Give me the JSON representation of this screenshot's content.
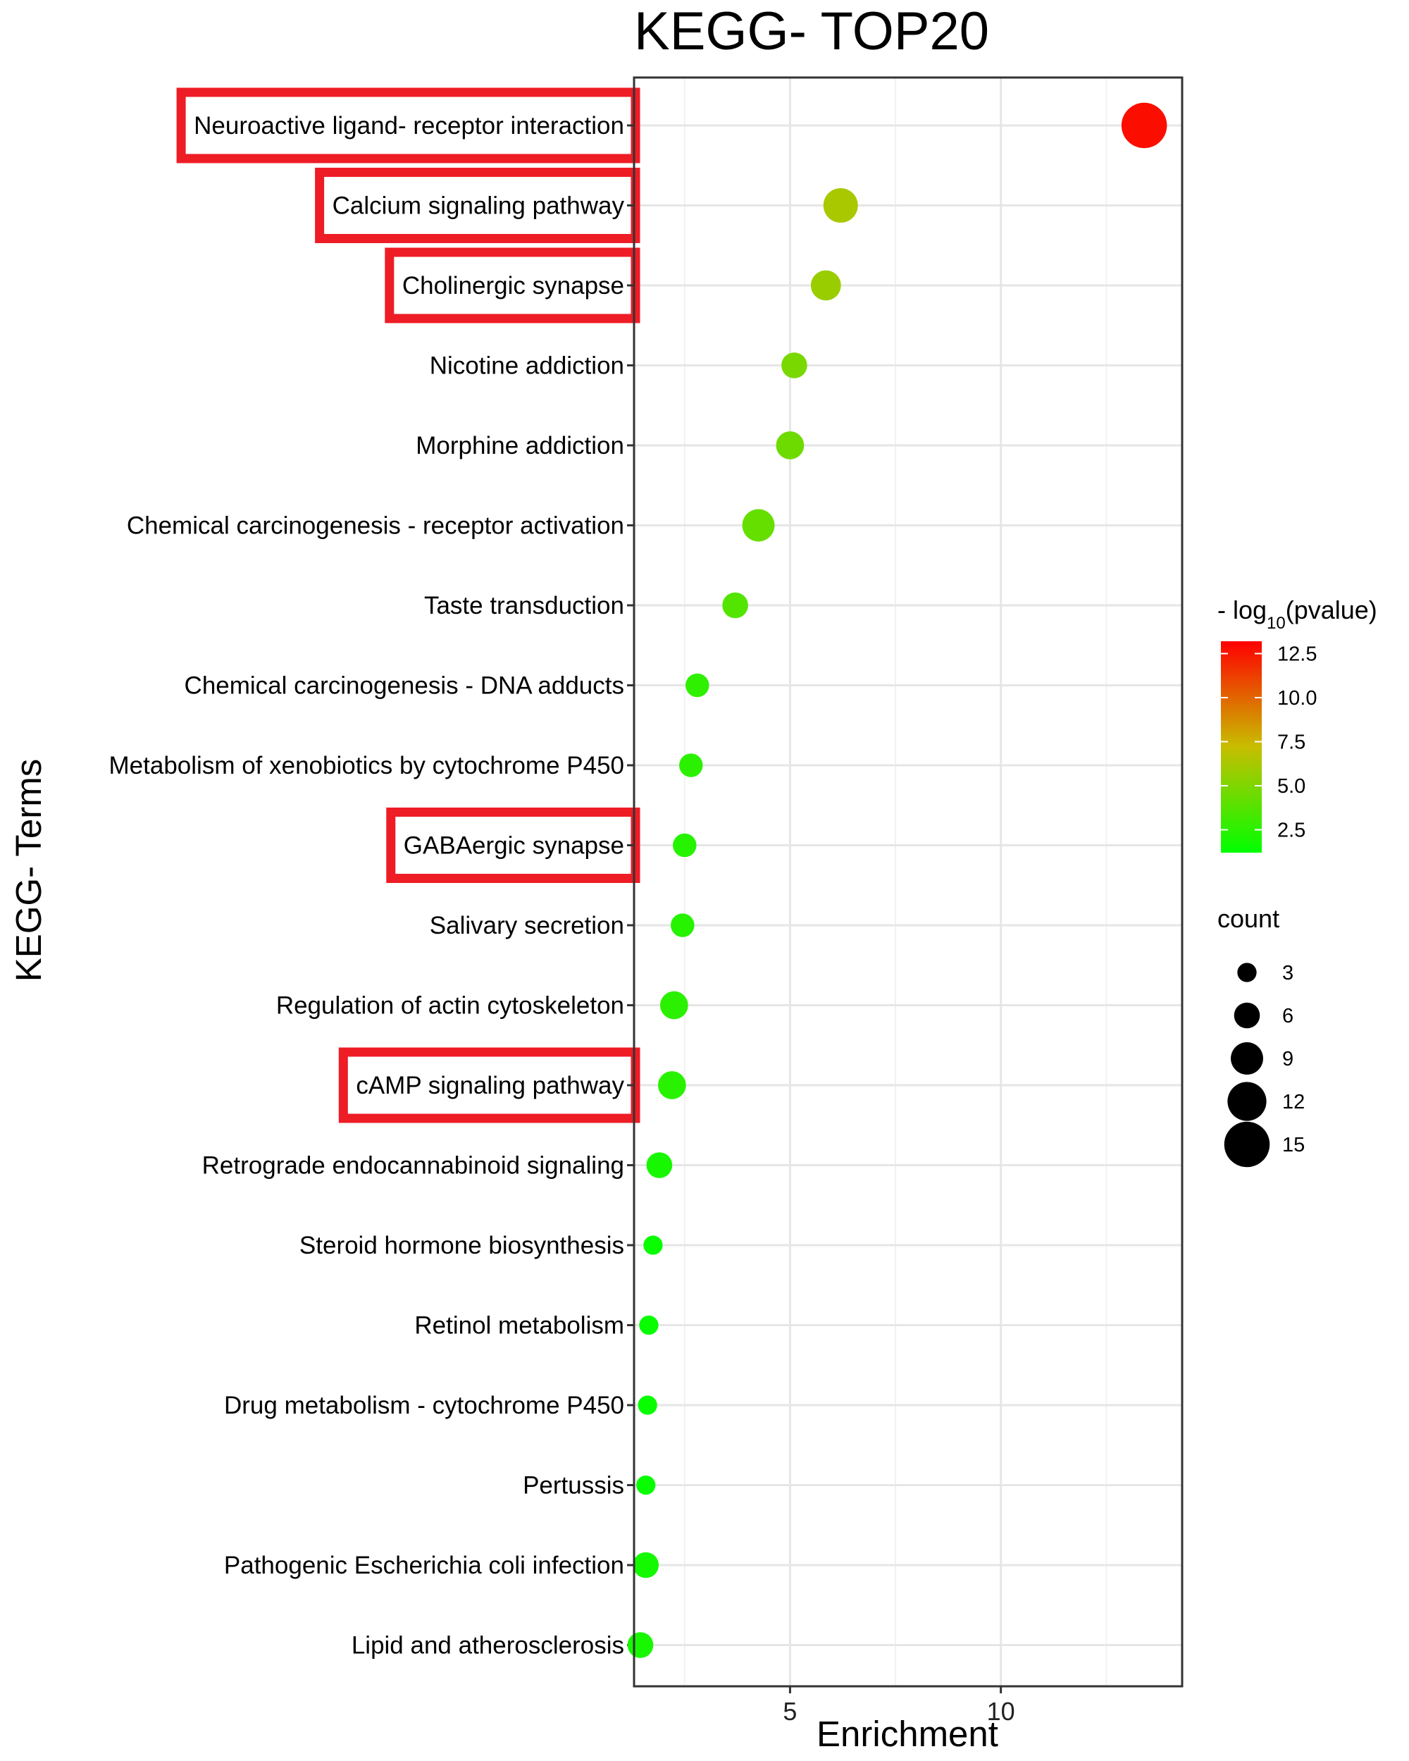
{
  "chart_data": {
    "type": "scatter",
    "title": "KEGG- TOP20",
    "xlabel": "Enrichment",
    "ylabel": "KEGG- Terms",
    "xlim": [
      1.3,
      14.3
    ],
    "x_ticks": [
      5,
      10
    ],
    "grid": true,
    "terms": [
      {
        "name": "Neuroactive ligand- receptor interaction",
        "enrichment": 13.4,
        "count": 15,
        "neg_log10_pvalue": 12.8,
        "highlighted": true
      },
      {
        "name": "Calcium signaling pathway",
        "enrichment": 6.2,
        "count": 10,
        "neg_log10_pvalue": 6.3,
        "highlighted": true
      },
      {
        "name": "Cholinergic synapse",
        "enrichment": 5.85,
        "count": 8,
        "neg_log10_pvalue": 5.8,
        "highlighted": true
      },
      {
        "name": "Nicotine addiction",
        "enrichment": 5.1,
        "count": 6,
        "neg_log10_pvalue": 4.8,
        "highlighted": false
      },
      {
        "name": "Morphine addiction",
        "enrichment": 5.0,
        "count": 7,
        "neg_log10_pvalue": 4.5,
        "highlighted": false
      },
      {
        "name": "Chemical carcinogenesis -  receptor activation",
        "enrichment": 4.25,
        "count": 9,
        "neg_log10_pvalue": 4.2,
        "highlighted": false
      },
      {
        "name": "Taste transduction",
        "enrichment": 3.7,
        "count": 6,
        "neg_log10_pvalue": 3.7,
        "highlighted": false
      },
      {
        "name": "Chemical carcinogenesis -  DNA adducts",
        "enrichment": 2.8,
        "count": 5,
        "neg_log10_pvalue": 2.6,
        "highlighted": false
      },
      {
        "name": "Metabolism of xenobiotics by cytochrome P450",
        "enrichment": 2.65,
        "count": 5,
        "neg_log10_pvalue": 2.5,
        "highlighted": false
      },
      {
        "name": "GABAergic synapse",
        "enrichment": 2.5,
        "count": 5,
        "neg_log10_pvalue": 2.3,
        "highlighted": true
      },
      {
        "name": "Salivary secretion",
        "enrichment": 2.45,
        "count": 5,
        "neg_log10_pvalue": 2.3,
        "highlighted": false
      },
      {
        "name": "Regulation of actin cytoskeleton",
        "enrichment": 2.25,
        "count": 7,
        "neg_log10_pvalue": 2.5,
        "highlighted": false
      },
      {
        "name": "cAMP signaling pathway",
        "enrichment": 2.2,
        "count": 7,
        "neg_log10_pvalue": 2.4,
        "highlighted": true
      },
      {
        "name": "Retrograde endocannabinoid signaling",
        "enrichment": 1.9,
        "count": 6,
        "neg_log10_pvalue": 1.9,
        "highlighted": false
      },
      {
        "name": "Steroid hormone biosynthesis",
        "enrichment": 1.75,
        "count": 3,
        "neg_log10_pvalue": 1.5,
        "highlighted": false
      },
      {
        "name": "Retinol metabolism",
        "enrichment": 1.65,
        "count": 3,
        "neg_log10_pvalue": 1.4,
        "highlighted": false
      },
      {
        "name": "Drug metabolism -  cytochrome P450",
        "enrichment": 1.62,
        "count": 3,
        "neg_log10_pvalue": 1.4,
        "highlighted": false
      },
      {
        "name": "Pertussis",
        "enrichment": 1.58,
        "count": 3,
        "neg_log10_pvalue": 1.4,
        "highlighted": false
      },
      {
        "name": "Pathogenic Escherichia coli infection",
        "enrichment": 1.58,
        "count": 6,
        "neg_log10_pvalue": 1.8,
        "highlighted": false
      },
      {
        "name": "Lipid and atherosclerosis",
        "enrichment": 1.45,
        "count": 6,
        "neg_log10_pvalue": 1.9,
        "highlighted": false
      }
    ],
    "color_legend": {
      "title_prefix": "- log",
      "title_subscript": "10",
      "title_suffix": "(pvalue)",
      "min": 1.2,
      "max": 13.2,
      "low_color": "#00ff00",
      "high_color": "#ff0000",
      "ticks": [
        2.5,
        5.0,
        7.5,
        10.0,
        12.5
      ],
      "tick_labels": [
        "2.5",
        "5.0",
        "7.5",
        "10.0",
        "12.5"
      ]
    },
    "size_legend": {
      "title": "count",
      "values": [
        3,
        6,
        9,
        12,
        15
      ],
      "labels": [
        "3",
        "6",
        "9",
        "12",
        "15"
      ]
    },
    "highlight_color": "#ee1c25"
  }
}
